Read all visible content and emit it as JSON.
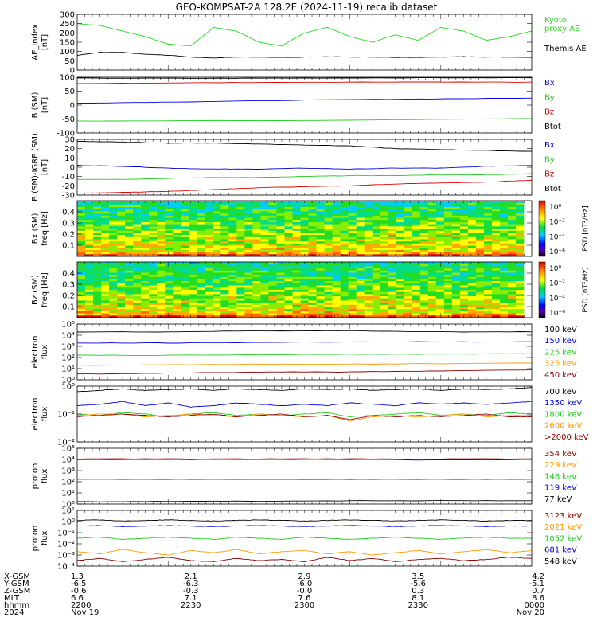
{
  "title": "GEO-KOMPSAT-2A 128.2E (2024-11-19) recalib dataset",
  "chart_data": [
    {
      "id": "ae",
      "type": "line",
      "ylabel": [
        "AE_index",
        "[nT]"
      ],
      "ylim": [
        0,
        300
      ],
      "yticks": [
        {
          "v": 300,
          "label": "300"
        },
        {
          "v": 250,
          "label": "250"
        },
        {
          "v": 200,
          "label": "200"
        },
        {
          "v": 150,
          "label": "150"
        },
        {
          "v": 100,
          "label": "100"
        },
        {
          "v": 50,
          "label": "50"
        },
        {
          "v": 0,
          "label": "0"
        }
      ],
      "x": [
        0,
        0.05,
        0.1,
        0.15,
        0.2,
        0.25,
        0.3,
        0.35,
        0.4,
        0.45,
        0.5,
        0.55,
        0.6,
        0.65,
        0.7,
        0.75,
        0.8,
        0.85,
        0.9,
        0.95,
        1
      ],
      "series": [
        {
          "name": "Kyoto proxy AE",
          "color": "#22dd22",
          "legend_lines": [
            "Kyoto",
            "proxy AE"
          ],
          "values": [
            250,
            240,
            210,
            180,
            140,
            130,
            230,
            210,
            150,
            130,
            200,
            230,
            180,
            150,
            190,
            160,
            230,
            210,
            160,
            180,
            210
          ]
        },
        {
          "name": "Themis AE",
          "color": "#000000",
          "legend_lines": [
            "Themis AE"
          ],
          "values": [
            80,
            95,
            95,
            85,
            80,
            70,
            65,
            70,
            70,
            68,
            70,
            72,
            70,
            70,
            68,
            68,
            70,
            72,
            70,
            70,
            68
          ]
        }
      ]
    },
    {
      "id": "bsm",
      "type": "line",
      "ylabel": [
        "B (SM)",
        "[nT]"
      ],
      "ylim": [
        -100,
        100
      ],
      "yticks": [
        {
          "v": 100,
          "label": "100"
        },
        {
          "v": 50,
          "label": "50"
        },
        {
          "v": 0,
          "label": "0"
        },
        {
          "v": -50,
          "label": "-50"
        },
        {
          "v": -100,
          "label": "-100"
        }
      ],
      "x": [
        0,
        0.25,
        0.5,
        0.75,
        1
      ],
      "series": [
        {
          "name": "Bx",
          "color": "#0000dd",
          "values": [
            7,
            12,
            18,
            22,
            25
          ]
        },
        {
          "name": "By",
          "color": "#22cc22",
          "values": [
            -57,
            -56,
            -55,
            -52,
            -48
          ]
        },
        {
          "name": "Bz",
          "color": "#dd0000",
          "values": [
            77,
            80,
            82,
            83,
            82
          ]
        },
        {
          "name": "Btot",
          "color": "#000000",
          "values": [
            97,
            96,
            97,
            98,
            98
          ]
        }
      ]
    },
    {
      "id": "bigrf",
      "type": "line",
      "ylabel": [
        "B (SM)-IGRF (SM)",
        "[nT]"
      ],
      "ylim": [
        -30,
        30
      ],
      "yticks": [
        {
          "v": 30,
          "label": "30"
        },
        {
          "v": 20,
          "label": "20"
        },
        {
          "v": 10,
          "label": "10"
        },
        {
          "v": 0,
          "label": "0"
        },
        {
          "v": -10,
          "label": "-10"
        },
        {
          "v": -20,
          "label": "-20"
        },
        {
          "v": -30,
          "label": "-30"
        }
      ],
      "x": [
        0,
        0.1,
        0.2,
        0.3,
        0.4,
        0.5,
        0.6,
        0.7,
        0.8,
        0.9,
        1
      ],
      "series": [
        {
          "name": "Bx",
          "color": "#0000dd",
          "values": [
            2,
            1,
            -1,
            -2,
            -2,
            -1,
            -2,
            -1,
            -1,
            1,
            2
          ]
        },
        {
          "name": "By",
          "color": "#22cc22",
          "values": [
            -13,
            -13,
            -12,
            -11,
            -11,
            -10,
            -9,
            -9,
            -8,
            -8,
            -7
          ]
        },
        {
          "name": "Bz",
          "color": "#dd0000",
          "values": [
            -28,
            -27,
            -26,
            -24,
            -22,
            -21,
            -20,
            -18,
            -17,
            -16,
            -14
          ]
        },
        {
          "name": "Btot",
          "color": "#000000",
          "values": [
            28,
            27,
            26,
            26,
            25,
            24,
            23,
            20,
            19,
            18,
            17
          ]
        }
      ]
    },
    {
      "id": "bx_spec",
      "type": "heatmap",
      "ylabel": [
        "Bx (SM)",
        "freq [Hz]"
      ],
      "ylim": [
        0,
        0.5
      ],
      "yticks": [
        {
          "v": 0.4,
          "label": "0.4"
        },
        {
          "v": 0.3,
          "label": "0.3"
        },
        {
          "v": 0.2,
          "label": "0.2"
        },
        {
          "v": 0.1,
          "label": "0.1"
        }
      ],
      "colorbar": {
        "label": "PSD [nT²/Hz]",
        "ticks": [
          "10⁰",
          "10⁻²",
          "10⁻⁴",
          "10⁻⁶"
        ]
      }
    },
    {
      "id": "bz_spec",
      "type": "heatmap",
      "ylabel": [
        "Bz (SM)",
        "freq [Hz]"
      ],
      "ylim": [
        0,
        0.5
      ],
      "yticks": [
        {
          "v": 0.4,
          "label": "0.4"
        },
        {
          "v": 0.3,
          "label": "0.3"
        },
        {
          "v": 0.2,
          "label": "0.2"
        },
        {
          "v": 0.1,
          "label": "0.1"
        }
      ],
      "colorbar": {
        "label": "PSD [nT²/Hz]",
        "ticks": [
          "10⁰",
          "10⁻²",
          "10⁻⁴",
          "10⁻⁶"
        ]
      }
    },
    {
      "id": "eflux1",
      "type": "line",
      "log": true,
      "ylabel": [
        "electron",
        "flux"
      ],
      "ylim_log": [
        0,
        5
      ],
      "yticks": [
        {
          "v": 5,
          "label": "10⁵"
        },
        {
          "v": 4,
          "label": "10⁴"
        },
        {
          "v": 3,
          "label": "10³"
        },
        {
          "v": 2,
          "label": "10²"
        },
        {
          "v": 1,
          "label": "10¹"
        },
        {
          "v": 0,
          "label": "10⁰"
        }
      ],
      "x": [
        0,
        0.2,
        0.4,
        0.6,
        0.8,
        1
      ],
      "series": [
        {
          "name": "100 keV",
          "color": "#000000",
          "log_values": [
            4.3,
            4.3,
            4.4,
            4.4,
            4.3,
            4.3
          ]
        },
        {
          "name": "150 keV",
          "color": "#0000dd",
          "log_values": [
            3.3,
            3.3,
            3.35,
            3.4,
            3.4,
            3.4
          ]
        },
        {
          "name": "225 keV",
          "color": "#22cc22",
          "log_values": [
            2.2,
            2.2,
            2.25,
            2.3,
            2.3,
            2.35
          ]
        },
        {
          "name": "325 keV",
          "color": "#ff9900",
          "log_values": [
            1.3,
            1.35,
            1.4,
            1.4,
            1.45,
            1.5
          ]
        },
        {
          "name": "450 keV",
          "color": "#8b0000",
          "log_values": [
            0.5,
            0.6,
            0.7,
            0.7,
            0.8,
            0.9
          ]
        }
      ]
    },
    {
      "id": "eflux2",
      "type": "line",
      "log": true,
      "ylabel": [
        "electron",
        "flux"
      ],
      "ylim_log": [
        -2,
        0
      ],
      "yticks": [
        {
          "v": 0,
          "label": "10⁰"
        },
        {
          "v": -1,
          "label": "10⁻¹"
        },
        {
          "v": -2,
          "label": "10⁻²"
        }
      ],
      "x": [
        0,
        0.05,
        0.1,
        0.15,
        0.2,
        0.25,
        0.3,
        0.35,
        0.4,
        0.45,
        0.5,
        0.55,
        0.6,
        0.65,
        0.7,
        0.75,
        0.8,
        0.85,
        0.9,
        0.95,
        1
      ],
      "series": [
        {
          "name": "700 keV",
          "color": "#000000",
          "log_values": [
            -0.2,
            -0.15,
            -0.1,
            -0.15,
            -0.12,
            -0.1,
            -0.15,
            -0.1,
            -0.12,
            -0.15,
            -0.1,
            -0.12,
            -0.1,
            -0.15,
            -0.12,
            -0.1,
            -0.15,
            -0.1,
            -0.12,
            -0.1,
            -0.05
          ]
        },
        {
          "name": "1350 keV",
          "color": "#0000dd",
          "log_values": [
            -0.7,
            -0.65,
            -0.55,
            -0.7,
            -0.6,
            -0.75,
            -0.7,
            -0.6,
            -0.65,
            -0.7,
            -0.65,
            -0.7,
            -0.6,
            -0.65,
            -0.7,
            -0.6,
            -0.65,
            -0.6,
            -0.65,
            -0.6,
            -0.55
          ]
        },
        {
          "name": "1800 keV",
          "color": "#22cc22",
          "log_values": [
            -1.0,
            -1.05,
            -0.95,
            -1.0,
            -1.1,
            -1.0,
            -0.95,
            -1.05,
            -1.0,
            -1.05,
            -1.0,
            -0.95,
            -1.1,
            -1.05,
            -1.0,
            -0.95,
            -1.05,
            -1.0,
            -1.05,
            -0.95,
            -1.0
          ]
        },
        {
          "name": "2600 keV",
          "color": "#ff9900",
          "log_values": [
            -1.05,
            -1.0,
            -1.0,
            -1.1,
            -1.05,
            -1.0,
            -1.05,
            -1.1,
            -1.0,
            -1.05,
            -1.1,
            -1.05,
            -1.25,
            -1.1,
            -1.05,
            -1.1,
            -1.05,
            -1.0,
            -1.1,
            -1.05,
            -1.05
          ]
        },
        {
          "name": ">2000 keV",
          "color": "#8b0000",
          "log_values": [
            -1.1,
            -1.05,
            -1.0,
            -1.05,
            -1.1,
            -1.05,
            -1.0,
            -1.1,
            -1.05,
            -1.0,
            -1.1,
            -1.05,
            -1.2,
            -1.05,
            -1.1,
            -1.05,
            -1.1,
            -1.05,
            -1.0,
            -1.1,
            -1.1
          ]
        }
      ]
    },
    {
      "id": "pflux1",
      "type": "line",
      "log": true,
      "ylabel": [
        "proton",
        "flux"
      ],
      "ylim_log": [
        0,
        5
      ],
      "yticks": [
        {
          "v": 5,
          "label": "10⁵"
        },
        {
          "v": 4,
          "label": "10⁴"
        },
        {
          "v": 3,
          "label": "10³"
        },
        {
          "v": 2,
          "label": "10²"
        },
        {
          "v": 1,
          "label": "10¹"
        },
        {
          "v": 0,
          "label": "10⁰"
        }
      ],
      "x": [
        0,
        0.2,
        0.4,
        0.6,
        0.8,
        1
      ],
      "series": [
        {
          "name": "354 keV",
          "color": "#8b0000",
          "log_values": [
            4.05,
            4.05,
            4.05,
            4.05,
            4.05,
            4.05
          ]
        },
        {
          "name": "229 keV",
          "color": "#ff9900",
          "log_values": [
            4.0,
            4.0,
            4.0,
            4.0,
            4.0,
            4.0
          ]
        },
        {
          "name": "148 keV",
          "color": "#22cc22",
          "log_values": [
            2.2,
            2.2,
            2.2,
            2.2,
            2.2,
            2.2
          ]
        },
        {
          "name": "119 keV",
          "color": "#0000dd",
          "log_values": [
            4.0,
            4.0,
            4.0,
            4.0,
            3.95,
            4.0
          ]
        },
        {
          "name": "77 keV",
          "color": "#000000",
          "log_values": [
            0.2,
            0.25,
            0.25,
            0.3,
            0.3,
            0.3
          ]
        }
      ]
    },
    {
      "id": "pflux2",
      "type": "line",
      "log": true,
      "ylabel": [
        "proton",
        "flux"
      ],
      "ylim_log": [
        -4,
        1
      ],
      "yticks": [
        {
          "v": 1,
          "label": "10¹"
        },
        {
          "v": 0,
          "label": "10⁰"
        },
        {
          "v": -1,
          "label": "10⁻¹"
        },
        {
          "v": -2,
          "label": "10⁻²"
        },
        {
          "v": -3,
          "label": "10⁻³"
        },
        {
          "v": -4,
          "label": "10⁻⁴"
        }
      ],
      "x": [
        0,
        0.05,
        0.1,
        0.15,
        0.2,
        0.25,
        0.3,
        0.35,
        0.4,
        0.45,
        0.5,
        0.55,
        0.6,
        0.65,
        0.7,
        0.75,
        0.8,
        0.85,
        0.9,
        0.95,
        1
      ],
      "series": [
        {
          "name": "3123 keV",
          "color": "#8b0000",
          "log_values": [
            -3.5,
            -3.3,
            -3.6,
            -3.4,
            -3.2,
            -3.5,
            -3.6,
            -3.3,
            -3.5,
            -3.4,
            -3.6,
            -3.2,
            -3.5,
            -3.3,
            -3.6,
            -3.4,
            -3.3,
            -3.5,
            -3.4,
            -3.2,
            -3.3
          ]
        },
        {
          "name": "2021 keV",
          "color": "#ff9900",
          "log_values": [
            -2.7,
            -2.9,
            -2.5,
            -2.8,
            -3.0,
            -2.6,
            -2.8,
            -2.5,
            -2.9,
            -2.7,
            -2.6,
            -2.9,
            -2.7,
            -3.0,
            -2.8,
            -2.6,
            -2.9,
            -2.7,
            -2.5,
            -2.8,
            -2.6
          ]
        },
        {
          "name": "1052 keV",
          "color": "#22cc22",
          "log_values": [
            -1.5,
            -1.4,
            -1.6,
            -1.5,
            -1.4,
            -1.5,
            -1.6,
            -1.4,
            -1.5,
            -1.6,
            -1.4,
            -1.5,
            -1.6,
            -1.5,
            -1.4,
            -1.5,
            -1.6,
            -1.5,
            -1.4,
            -1.5,
            -1.5
          ]
        },
        {
          "name": "681 keV",
          "color": "#0000dd",
          "log_values": [
            -0.4,
            -0.35,
            -0.45,
            -0.4,
            -0.35,
            -0.4,
            -0.45,
            -0.4,
            -0.35,
            -0.4,
            -0.45,
            -0.4,
            -0.35,
            -0.4,
            -0.45,
            -0.4,
            -0.35,
            -0.4,
            -0.45,
            -0.4,
            -0.4
          ]
        },
        {
          "name": "548 keV",
          "color": "#000000",
          "log_values": [
            0.1,
            0.15,
            0.05,
            0.1,
            0.15,
            0.1,
            0.05,
            0.1,
            0.15,
            0.1,
            0.05,
            0.1,
            0.15,
            0.1,
            0.05,
            0.1,
            0.15,
            0.1,
            0.05,
            0.1,
            0.1
          ]
        }
      ]
    }
  ],
  "ephemeris": {
    "row_labels": [
      "X-GSM",
      "Y-GSM",
      "Z-GSM",
      "MLT",
      "hhmm",
      "2024"
    ],
    "columns": [
      {
        "values": [
          "1.3",
          "-6.5",
          "-0.6",
          "6.6",
          "2200",
          "Nov 19"
        ]
      },
      {
        "values": [
          "2.1",
          "-6.3",
          "-0.3",
          "7.1",
          "2230",
          ""
        ]
      },
      {
        "values": [
          "2.9",
          "-6.0",
          "-0.0",
          "7.6",
          "2300",
          ""
        ]
      },
      {
        "values": [
          "3.5",
          "-5.6",
          "0.3",
          "8.1",
          "2330",
          ""
        ]
      },
      {
        "values": [
          "4.2",
          "-5.1",
          "0.7",
          "8.6",
          "0000",
          "Nov 20"
        ]
      }
    ]
  }
}
